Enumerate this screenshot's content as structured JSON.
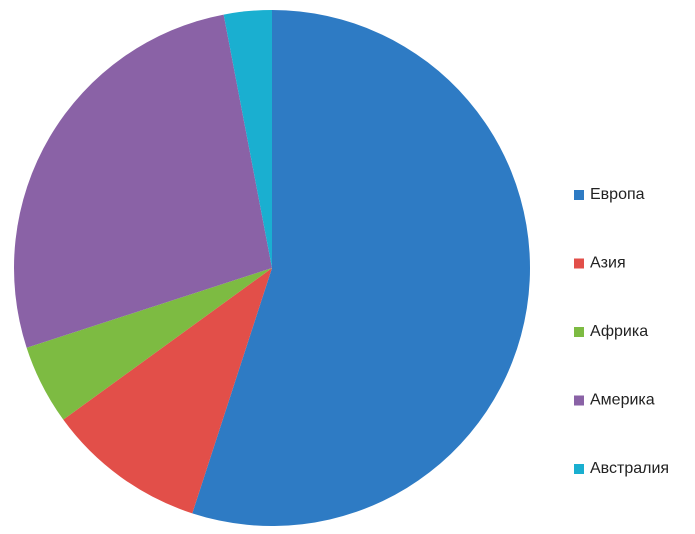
{
  "chart_data": {
    "type": "pie",
    "categories": [
      "Европа",
      "Азия",
      "Африка",
      "Америка",
      "Австралия"
    ],
    "values": [
      55,
      10,
      5,
      27,
      3
    ],
    "colors": [
      "#2e7bc4",
      "#e24f49",
      "#7dbb42",
      "#8a62a6",
      "#1aafd0"
    ],
    "legend": "right"
  }
}
